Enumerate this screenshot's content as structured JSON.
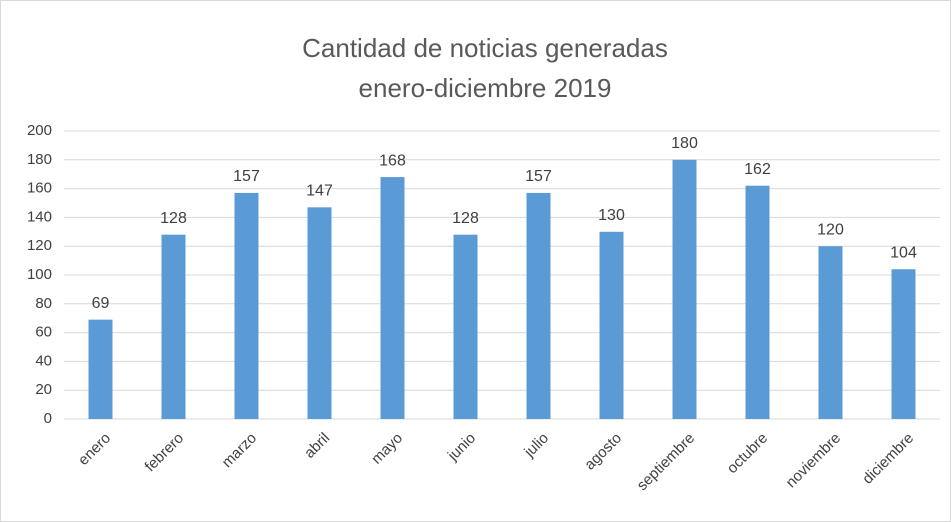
{
  "chart_data": {
    "type": "bar",
    "title": "Cantidad de noticias generadas",
    "subtitle": "enero-diciembre 2019",
    "categories": [
      "enero",
      "febrero",
      "marzo",
      "abril",
      "mayo",
      "junio",
      "julio",
      "agosto",
      "septiembre",
      "octubre",
      "noviembre",
      "diciembre"
    ],
    "values": [
      69,
      128,
      157,
      147,
      168,
      128,
      157,
      130,
      180,
      162,
      120,
      104
    ],
    "color": "#5b9bd5",
    "ylim": [
      0,
      200
    ],
    "yticks": [
      0,
      20,
      40,
      60,
      80,
      100,
      120,
      140,
      160,
      180,
      200
    ],
    "grid": true
  }
}
